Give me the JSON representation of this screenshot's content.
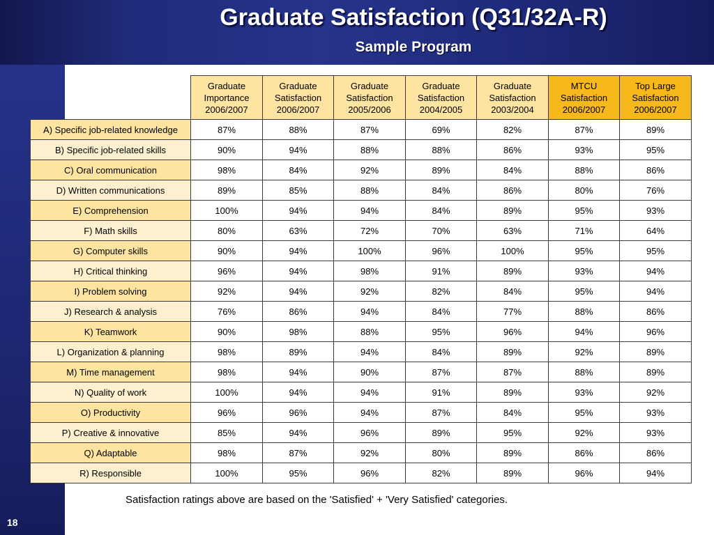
{
  "header": {
    "title": "Graduate Satisfaction (Q31/32A-R)",
    "subtitle": "Sample Program"
  },
  "table": {
    "columns": [
      [
        "Graduate",
        "Importance",
        "2006/2007"
      ],
      [
        "Graduate",
        "Satisfaction",
        "2006/2007"
      ],
      [
        "Graduate",
        "Satisfaction",
        "2005/2006"
      ],
      [
        "Graduate",
        "Satisfaction",
        "2004/2005"
      ],
      [
        "Graduate",
        "Satisfaction",
        "2003/2004"
      ],
      [
        "MTCU",
        "Satisfaction",
        "2006/2007"
      ],
      [
        "Top Large",
        "Satisfaction",
        "2006/2007"
      ]
    ],
    "rows": [
      {
        "label": "A) Specific job-related knowledge",
        "values": [
          "87%",
          "88%",
          "87%",
          "69%",
          "82%",
          "87%",
          "89%"
        ]
      },
      {
        "label": "B) Specific job-related skills",
        "values": [
          "90%",
          "94%",
          "88%",
          "88%",
          "86%",
          "93%",
          "95%"
        ]
      },
      {
        "label": "C) Oral communication",
        "values": [
          "98%",
          "84%",
          "92%",
          "89%",
          "84%",
          "88%",
          "86%"
        ]
      },
      {
        "label": "D) Written communications",
        "values": [
          "89%",
          "85%",
          "88%",
          "84%",
          "86%",
          "80%",
          "76%"
        ]
      },
      {
        "label": "E) Comprehension",
        "values": [
          "100%",
          "94%",
          "94%",
          "84%",
          "89%",
          "95%",
          "93%"
        ]
      },
      {
        "label": "F) Math skills",
        "values": [
          "80%",
          "63%",
          "72%",
          "70%",
          "63%",
          "71%",
          "64%"
        ]
      },
      {
        "label": "G) Computer skills",
        "values": [
          "90%",
          "94%",
          "100%",
          "96%",
          "100%",
          "95%",
          "95%"
        ]
      },
      {
        "label": "H) Critical thinking",
        "values": [
          "96%",
          "94%",
          "98%",
          "91%",
          "89%",
          "93%",
          "94%"
        ]
      },
      {
        "label": "I) Problem solving",
        "values": [
          "92%",
          "94%",
          "92%",
          "82%",
          "84%",
          "95%",
          "94%"
        ]
      },
      {
        "label": "J) Research & analysis",
        "values": [
          "76%",
          "86%",
          "94%",
          "84%",
          "77%",
          "88%",
          "86%"
        ]
      },
      {
        "label": "K) Teamwork",
        "values": [
          "90%",
          "98%",
          "88%",
          "95%",
          "96%",
          "94%",
          "96%"
        ]
      },
      {
        "label": "L) Organization & planning",
        "values": [
          "98%",
          "89%",
          "94%",
          "84%",
          "89%",
          "92%",
          "89%"
        ]
      },
      {
        "label": "M) Time management",
        "values": [
          "98%",
          "94%",
          "90%",
          "87%",
          "87%",
          "88%",
          "89%"
        ]
      },
      {
        "label": "N) Quality of work",
        "values": [
          "100%",
          "94%",
          "94%",
          "91%",
          "89%",
          "93%",
          "92%"
        ]
      },
      {
        "label": "O) Productivity",
        "values": [
          "96%",
          "96%",
          "94%",
          "87%",
          "84%",
          "95%",
          "93%"
        ]
      },
      {
        "label": "P) Creative & innovative",
        "values": [
          "85%",
          "94%",
          "96%",
          "89%",
          "95%",
          "92%",
          "93%"
        ]
      },
      {
        "label": "Q) Adaptable",
        "values": [
          "98%",
          "87%",
          "92%",
          "80%",
          "89%",
          "86%",
          "86%"
        ]
      },
      {
        "label": "R) Responsible",
        "values": [
          "100%",
          "95%",
          "96%",
          "82%",
          "89%",
          "96%",
          "94%"
        ]
      }
    ]
  },
  "footnote": "Satisfaction ratings above are based on the 'Satisfied' + 'Very Satisfied' categories.",
  "page_number": "18",
  "colors": {
    "header_yellow": "#fde4a0",
    "header_orange": "#f6b81a",
    "label_light": "#fdf0cf",
    "background_navy": "#1f2c7a"
  }
}
